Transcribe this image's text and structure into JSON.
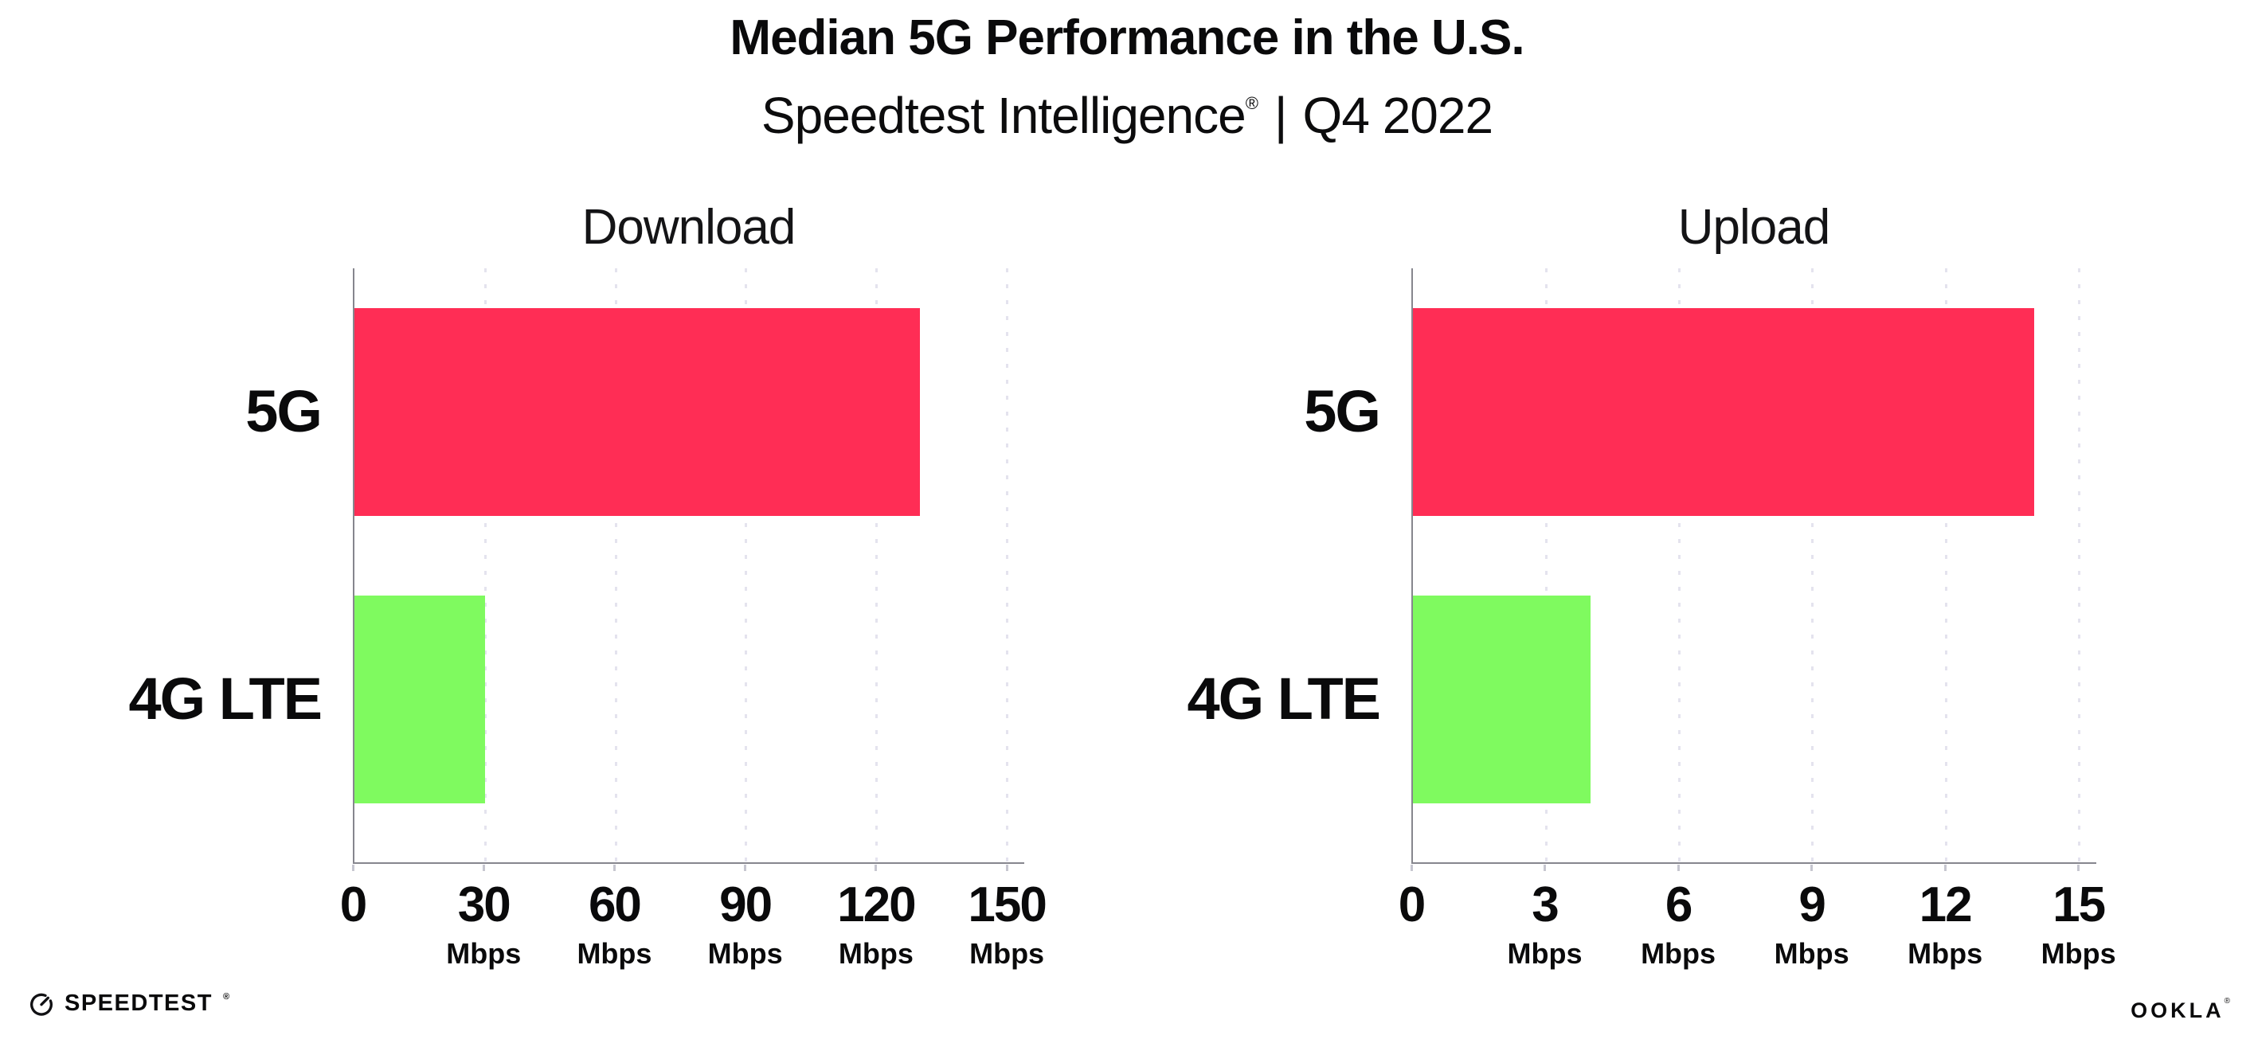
{
  "header": {
    "title": "Median 5G Performance in the U.S.",
    "subtitle": {
      "brand": "Speedtest Intelligence",
      "registered": "®",
      "separator": "|",
      "period": "Q4 2022"
    }
  },
  "chart_data": [
    {
      "type": "bar",
      "orientation": "horizontal",
      "title": "Download",
      "categories": [
        "5G",
        "4G LTE"
      ],
      "values": [
        130,
        30
      ],
      "unit": "Mbps",
      "xlim": [
        0,
        154
      ],
      "xticks": [
        0,
        30,
        60,
        90,
        120,
        150
      ],
      "xlabel": "",
      "ylabel": "",
      "grid": "vertical-dotted",
      "legend": "none",
      "bar_colors": [
        "#FF2D55",
        "#7FFA5F"
      ]
    },
    {
      "type": "bar",
      "orientation": "horizontal",
      "title": "Upload",
      "categories": [
        "5G",
        "4G LTE"
      ],
      "values": [
        14,
        4
      ],
      "unit": "Mbps",
      "xlim": [
        0,
        15.4
      ],
      "xticks": [
        0,
        3,
        6,
        9,
        12,
        15
      ],
      "xlabel": "",
      "ylabel": "",
      "grid": "vertical-dotted",
      "legend": "none",
      "bar_colors": [
        "#FF2D55",
        "#7FFA5F"
      ]
    }
  ],
  "footer": {
    "speedtest_label": "SPEEDTEST",
    "speedtest_mark": "®",
    "ookla_label": "OOKLA",
    "ookla_mark": "®"
  },
  "colors": {
    "bar_5g": "#FF2D55",
    "bar_4g_lte": "#7FFA5F",
    "axis": "#86868e",
    "grid": "#e4e3ee",
    "tick": "#c6c6d0",
    "text": "#0a0a0b"
  }
}
